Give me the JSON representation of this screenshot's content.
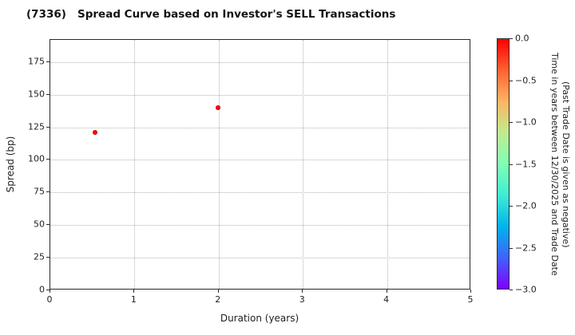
{
  "chart_data": {
    "type": "scatter",
    "title": "(7336)   Spread Curve based on Investor's SELL Transactions",
    "xlabel": "Duration (years)",
    "ylabel": "Spread (bp)",
    "xlim": [
      0,
      5
    ],
    "ylim": [
      0,
      192
    ],
    "grid": true,
    "x_ticks": [
      0,
      1,
      2,
      3,
      4,
      5
    ],
    "x_tick_labels": [
      "0",
      "1",
      "2",
      "3",
      "4",
      "5"
    ],
    "y_ticks": [
      0,
      25,
      50,
      75,
      100,
      125,
      150,
      175
    ],
    "y_tick_labels": [
      "0",
      "25",
      "50",
      "75",
      "100",
      "125",
      "150",
      "175"
    ],
    "points": [
      {
        "x": 0.53,
        "y": 121,
        "color_value": 0.0,
        "color": "#ff0000"
      },
      {
        "x": 1.99,
        "y": 140,
        "color_value": 0.0,
        "color": "#ff0000"
      }
    ],
    "point_edge_color": "#a00000",
    "colorbar": {
      "label_line1": "Time in years between 12/30/2025 and Trade Date",
      "label_line2": "(Past Trade Date is given as negative)",
      "max": 0.0,
      "min": -3.0,
      "ticks": [
        "0.0",
        "−0.5",
        "−1.0",
        "−1.5",
        "−2.0",
        "−2.5",
        "−3.0"
      ],
      "gradient_top_to_bottom": [
        "#ff0000",
        "#ff6232",
        "#ffb462",
        "#bfec8e",
        "#80ffb4",
        "#40ecd4",
        "#00b4ec",
        "#4062fa",
        "#8000ff"
      ]
    },
    "colors": {
      "grid": "#b3b3b3",
      "spine": "#2a2a2a",
      "background": "#ffffff"
    }
  }
}
